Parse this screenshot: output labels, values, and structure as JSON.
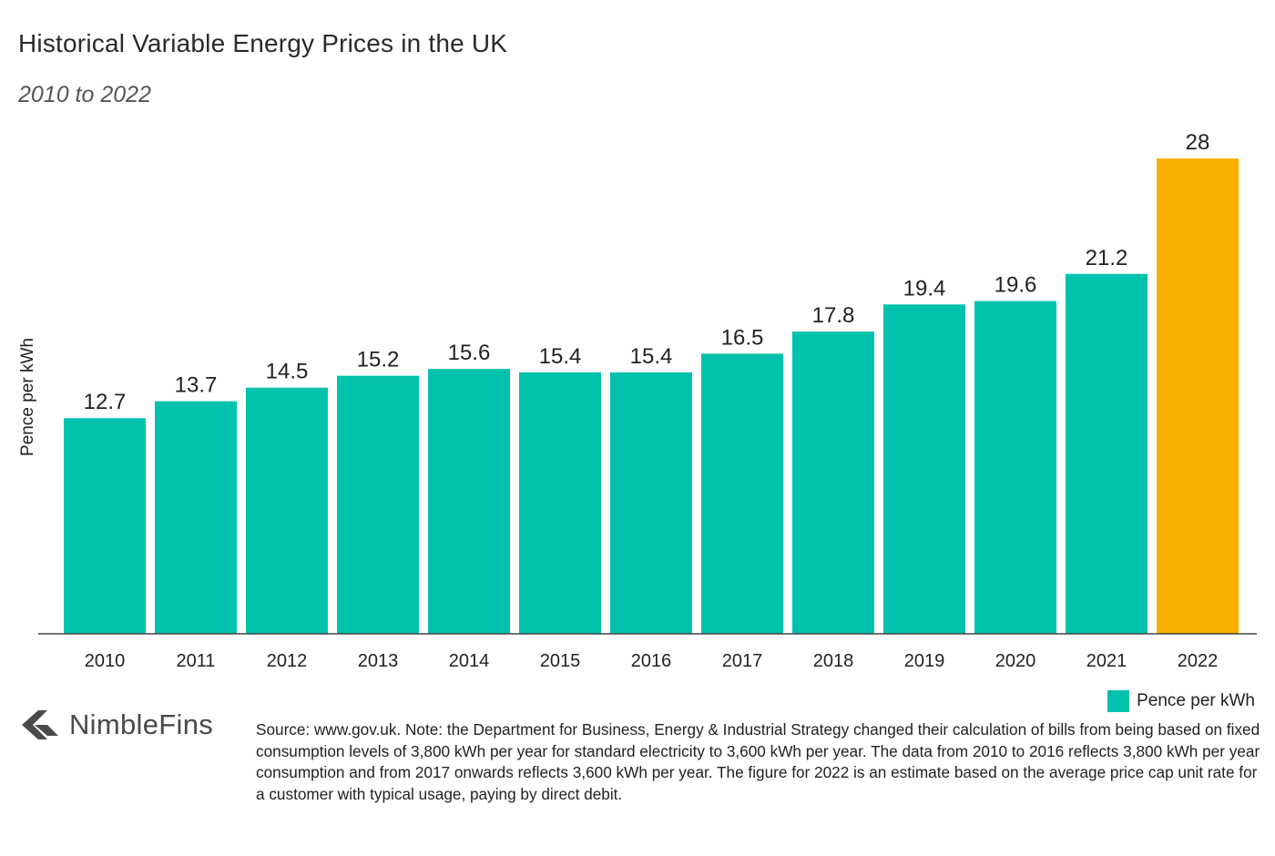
{
  "title": "Historical Variable Energy Prices in the UK",
  "subtitle": "2010 to 2022",
  "chart_data": {
    "type": "bar",
    "categories": [
      "2010",
      "2011",
      "2012",
      "2013",
      "2014",
      "2015",
      "2016",
      "2017",
      "2018",
      "2019",
      "2020",
      "2021",
      "2022"
    ],
    "values": [
      12.7,
      13.7,
      14.5,
      15.2,
      15.6,
      15.4,
      15.4,
      16.5,
      17.8,
      19.4,
      19.6,
      21.2,
      28
    ],
    "data_labels": [
      "12.7",
      "13.7",
      "14.5",
      "15.2",
      "15.6",
      "15.4",
      "15.4",
      "16.5",
      "17.8",
      "19.4",
      "19.6",
      "21.2",
      "28"
    ],
    "series": [
      {
        "name": "Pence per kWh",
        "values": [
          12.7,
          13.7,
          14.5,
          15.2,
          15.6,
          15.4,
          15.4,
          16.5,
          17.8,
          19.4,
          19.6,
          21.2,
          28
        ]
      }
    ],
    "title": "Historical Variable Energy Prices in the UK",
    "subtitle": "2010 to 2022",
    "xlabel": "",
    "ylabel": "Pence per kWh",
    "ylim": [
      0,
      28
    ],
    "grid": false,
    "legend": "bottom-right",
    "highlighted_category": "2022",
    "colors": {
      "bar": "#00c2ad",
      "highlight": "#f7b000",
      "axis": "#444444"
    }
  },
  "legend": {
    "label": "Pence per kWh"
  },
  "brand": {
    "name": "NimbleFins",
    "icon": "nimblefins-chevron-icon",
    "color": "#4a4a4a"
  },
  "source_note": "Source: www.gov.uk. Note: the Department for Business, Energy & Industrial Strategy changed their calculation of bills from being based on fixed consumption levels of 3,800 kWh per year for standard electricity to 3,600 kWh per year. The data from 2010 to 2016 reflects 3,800 kWh per year consumption and from 2017 onwards reflects 3,600 kWh per year. The figure for 2022 is an estimate based on the average price cap unit rate for a customer with typical usage, paying by direct debit."
}
